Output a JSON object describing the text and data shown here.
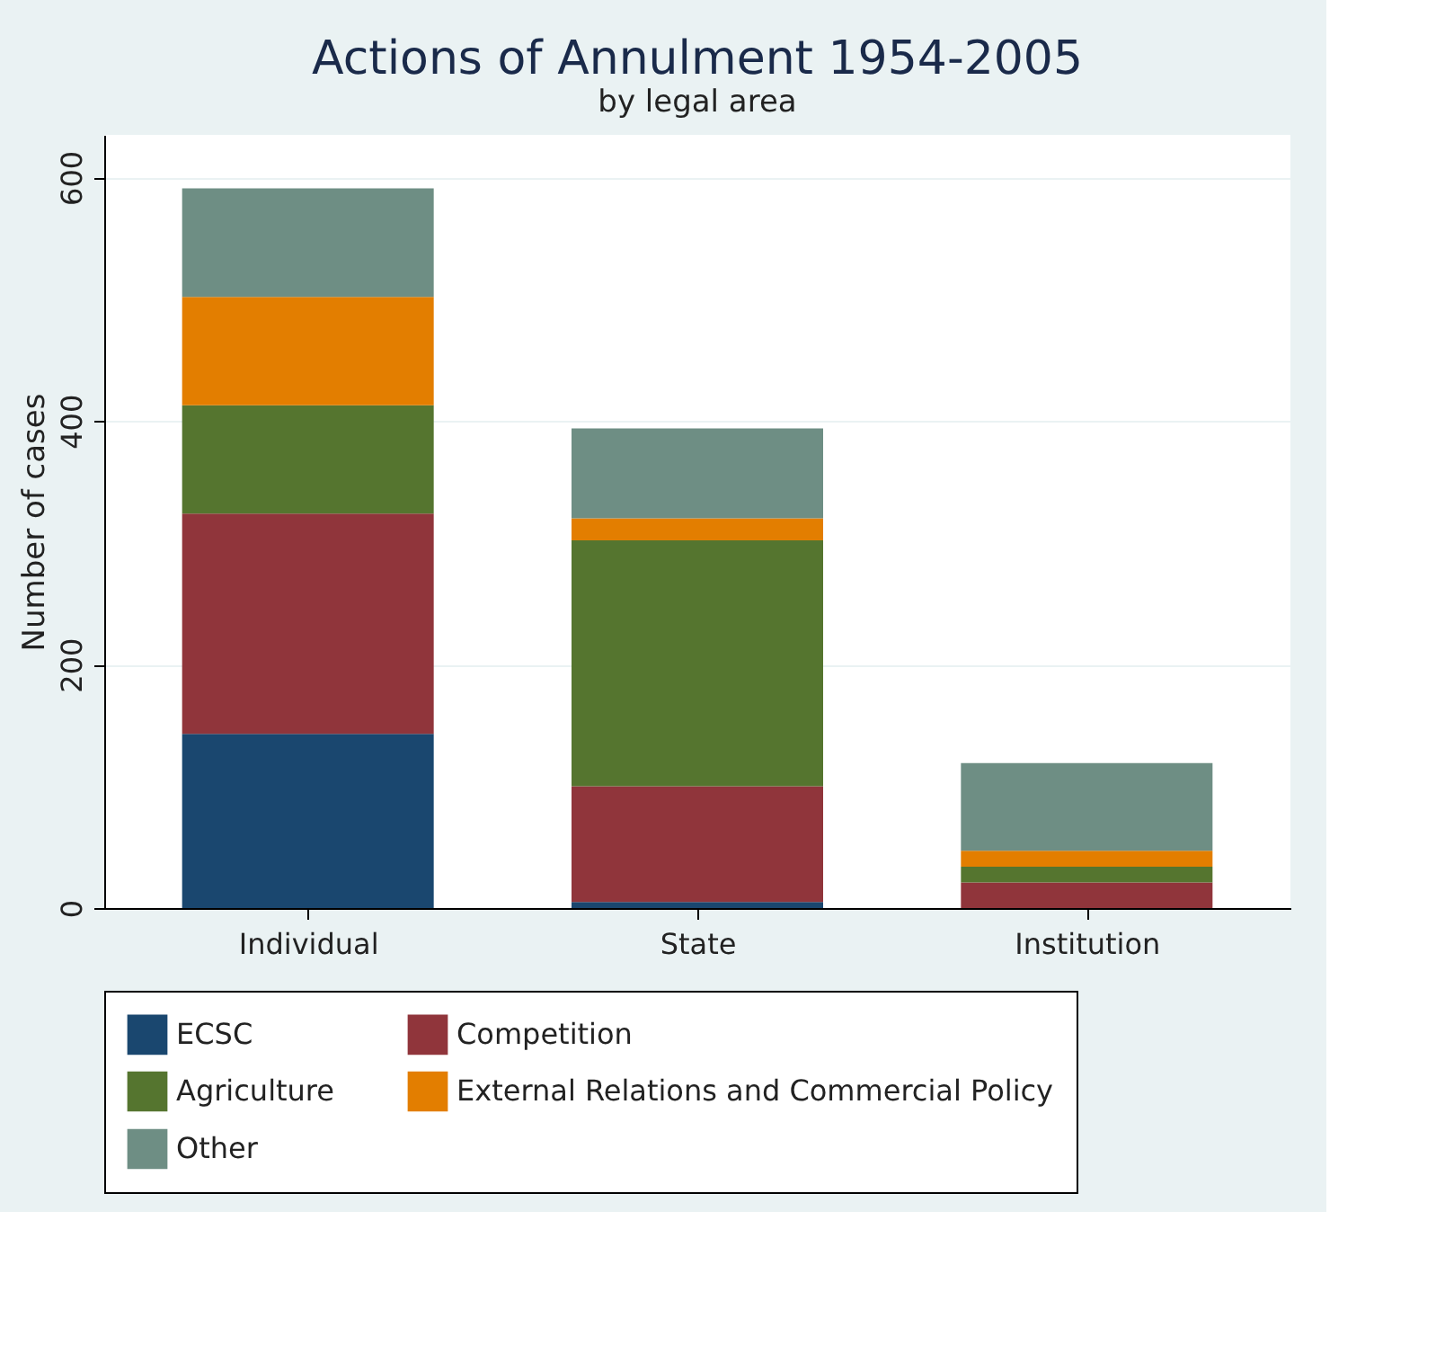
{
  "chart_data": {
    "type": "bar",
    "title": "Actions of Annulment 1954-2005",
    "subtitle": "by legal area",
    "ylabel": "Number of cases",
    "categories": [
      "Individual",
      "State",
      "Institution"
    ],
    "stacked": true,
    "series": [
      {
        "name": "ECSC",
        "color": "#1a476f",
        "values": [
          143,
          5,
          0
        ]
      },
      {
        "name": "Competition",
        "color": "#90353b",
        "values": [
          181,
          95,
          21
        ]
      },
      {
        "name": "Agriculture",
        "color": "#55752f",
        "values": [
          89,
          202,
          13
        ]
      },
      {
        "name": "External Relations and Commercial Policy",
        "color": "#e37e00",
        "values": [
          89,
          18,
          13
        ]
      },
      {
        "name": "Other",
        "color": "#6e8e84",
        "values": [
          89,
          74,
          72
        ]
      }
    ],
    "ylim": [
      0,
      635
    ],
    "yticks": [
      0,
      200,
      400,
      600
    ],
    "grid": "y",
    "legend": "bottom"
  }
}
